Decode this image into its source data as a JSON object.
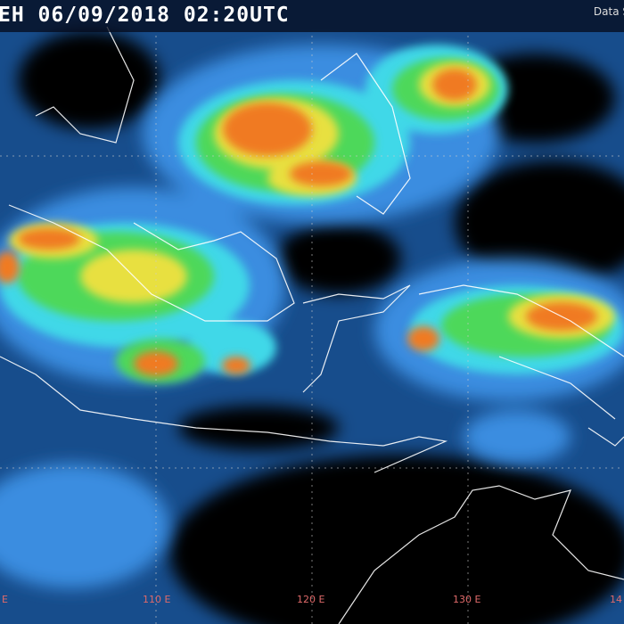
{
  "header": {
    "title": "EH 06/09/2018 02:20UTC",
    "source_label": "Data S"
  },
  "longitude_labels": [
    "E",
    "110 E",
    "120 E",
    "130 E",
    "14"
  ],
  "colors": {
    "ocean_cloud_free": "#000000",
    "low_cloud": "#174d8c",
    "mid_cloud": "#3b8de0",
    "cyan": "#3fd8e8",
    "green": "#4ed85a",
    "yellow": "#e8e040",
    "orange": "#f07a20",
    "coastline": "#ffffff",
    "grid_label": "#e06a6a"
  }
}
